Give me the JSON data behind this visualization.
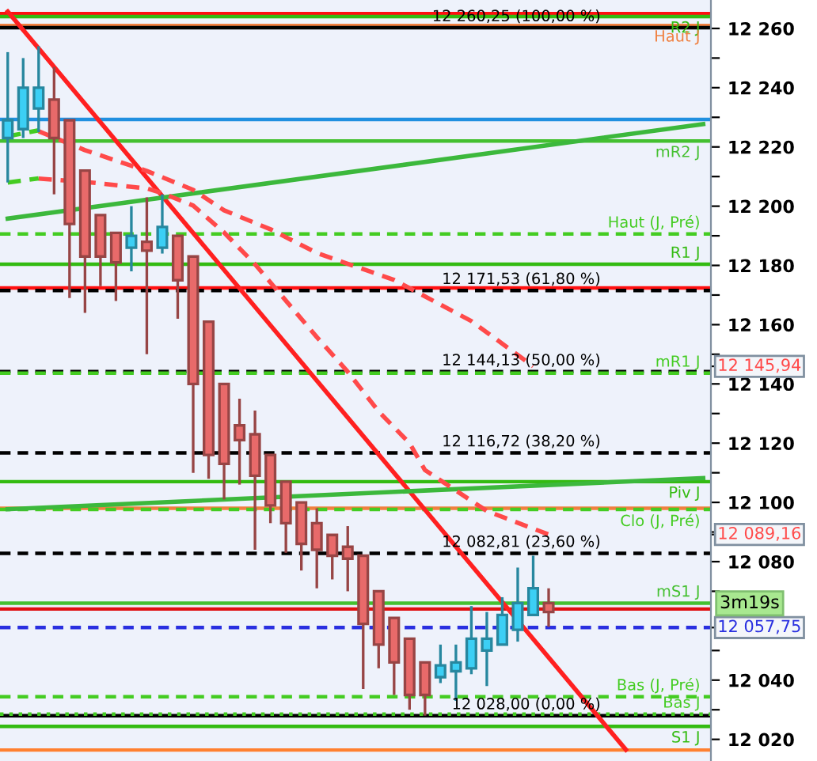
{
  "chart_data": {
    "type": "candlestick",
    "categories": [
      null,
      null,
      null,
      null,
      null,
      null,
      null,
      null,
      null,
      null,
      null,
      null,
      null,
      null,
      null,
      null,
      null,
      null,
      null,
      null,
      null,
      null,
      null,
      null,
      null,
      null,
      null,
      null,
      null,
      null,
      null,
      null,
      null,
      null,
      null,
      null,
      null,
      null,
      null,
      null,
      null,
      null,
      null,
      null,
      null,
      null
    ],
    "ohlc": [
      [
        12223,
        12252,
        12208,
        12229
      ],
      [
        12226,
        12250,
        12223,
        12240
      ],
      [
        12233,
        12254,
        12225,
        12240
      ],
      [
        12236,
        12247,
        12204,
        12223
      ],
      [
        12229,
        12229,
        12169,
        12194
      ],
      [
        12212,
        12212,
        12164,
        12183
      ],
      [
        12197,
        12197,
        12173,
        12183
      ],
      [
        12191,
        12191,
        12168,
        12181
      ],
      [
        12186,
        12200,
        12178,
        12190
      ],
      [
        12188,
        12203,
        12150,
        12185
      ],
      [
        12186,
        12204,
        12184,
        12193
      ],
      [
        12190,
        12190,
        12162,
        12175
      ],
      [
        12183,
        12183,
        12110,
        12140
      ],
      [
        12161,
        12161,
        12108,
        12116
      ],
      [
        12140,
        12140,
        12101,
        12113
      ],
      [
        12126,
        12135,
        12106,
        12121
      ],
      [
        12123,
        12131,
        12084,
        12109
      ],
      [
        12116,
        12116,
        12093,
        12099
      ],
      [
        12107,
        12107,
        12083,
        12093
      ],
      [
        12100,
        12100,
        12077,
        12086
      ],
      [
        12093,
        12098,
        12071,
        12084
      ],
      [
        12089,
        12089,
        12074,
        12082
      ],
      [
        12085,
        12092,
        12070,
        12081
      ],
      [
        12082,
        12082,
        12037,
        12059
      ],
      [
        12070,
        12070,
        12044,
        12052
      ],
      [
        12061,
        12061,
        12035,
        12046
      ],
      [
        12054,
        12054,
        12030,
        12035
      ],
      [
        12046,
        12046,
        12028,
        12035
      ],
      [
        12041,
        12052,
        12039,
        12045
      ],
      [
        12043,
        12052,
        12033,
        12046
      ],
      [
        12044,
        12065,
        12042,
        12054
      ],
      [
        12050,
        12063,
        12038,
        12054
      ],
      [
        12052,
        12068,
        12052,
        12062
      ],
      [
        12057,
        12078,
        12053,
        12066
      ],
      [
        12062,
        12082,
        12062,
        12071
      ],
      [
        12066,
        12071,
        12058,
        12063
      ],
      null,
      null,
      null,
      null,
      null,
      null,
      null,
      null,
      null,
      null
    ],
    "colors": [
      "#3ccff5",
      "#3ccff5",
      "#3ccff5",
      "#e86a6a",
      "#e86a6a",
      "#e86a6a",
      "#e86a6a",
      "#e86a6a",
      "#3ccff5",
      "#e86a6a",
      "#3ccff5",
      "#e86a6a",
      "#e86a6a",
      "#e86a6a",
      "#e86a6a",
      "#e86a6a",
      "#e86a6a",
      "#e86a6a",
      "#e86a6a",
      "#e86a6a",
      "#e86a6a",
      "#e86a6a",
      "#e86a6a",
      "#e86a6a",
      "#e86a6a",
      "#e86a6a",
      "#e86a6a",
      "#e86a6a",
      "#3ccff5",
      "#3ccff5",
      "#3ccff5",
      "#3ccff5",
      "#3ccff5",
      "#3ccff5",
      "#3ccff5",
      "#e86a6a",
      null,
      null,
      null,
      null,
      null,
      null,
      null,
      null,
      null,
      null
    ],
    "series": [
      {
        "type": "line",
        "color": "#ff2020",
        "line_style": "solid",
        "values": [
          12265.7,
          null,
          null,
          null,
          null,
          null,
          null,
          null,
          null,
          null,
          null,
          null,
          null,
          null,
          null,
          null,
          null,
          null,
          null,
          null,
          null,
          null,
          null,
          null,
          null,
          null,
          null,
          null,
          null,
          null,
          null,
          null,
          null,
          null,
          null,
          null,
          null,
          null,
          null,
          null,
          12016.5,
          null,
          null,
          null,
          null,
          null
        ]
      },
      {
        "type": "line",
        "color": "#3cb83c",
        "line_style": "solid",
        "values": [
          12195.8,
          null,
          null,
          null,
          null,
          null,
          null,
          null,
          null,
          null,
          null,
          null,
          null,
          null,
          null,
          null,
          null,
          null,
          null,
          null,
          null,
          null,
          null,
          null,
          null,
          null,
          null,
          null,
          null,
          null,
          null,
          null,
          null,
          null,
          null,
          null,
          null,
          null,
          null,
          null,
          null,
          null,
          null,
          null,
          null,
          12227.7
        ]
      },
      {
        "type": "line",
        "color": "#3cb83c",
        "line_style": "solid",
        "values": [
          12097.7,
          null,
          null,
          null,
          null,
          null,
          null,
          null,
          null,
          null,
          null,
          null,
          null,
          null,
          null,
          null,
          null,
          null,
          null,
          null,
          null,
          null,
          null,
          null,
          null,
          null,
          null,
          null,
          null,
          null,
          null,
          null,
          null,
          null,
          null,
          null,
          null,
          null,
          null,
          null,
          null,
          null,
          null,
          null,
          null,
          12108.2
        ]
      },
      {
        "type": "line",
        "color": "#ff4a4a",
        "line_style": "dashed",
        "values": [
          null,
          null,
          12225.3,
          null,
          null,
          12218.9,
          null,
          null,
          null,
          12211.9,
          null,
          null,
          12205.5,
          null,
          12198.6,
          null,
          null,
          12192.2,
          null,
          null,
          12184.2,
          null,
          null,
          null,
          null,
          12175.1,
          null,
          null,
          null,
          null,
          12161.2,
          null,
          null,
          null,
          12145.94,
          null,
          null,
          null,
          null,
          null,
          null,
          null,
          null,
          null,
          null,
          null
        ]
      },
      {
        "type": "line",
        "color": "#ff4a4a",
        "line_style": "dashed",
        "values": [
          null,
          null,
          12209.3,
          null,
          null,
          12208.2,
          null,
          null,
          null,
          12206.0,
          12204.4,
          null,
          12200.2,
          null,
          12191.1,
          null,
          12180.4,
          null,
          12168.1,
          null,
          12155.8,
          null,
          12144.1,
          null,
          12130.7,
          null,
          12120.0,
          12110.9,
          null,
          null,
          null,
          12097.1,
          null,
          null,
          null,
          12089.16,
          null,
          null,
          null,
          null,
          null,
          null,
          null,
          null,
          null,
          null
        ]
      },
      {
        "type": "line",
        "color": "#44cc22",
        "line_style": "dashed",
        "values": [
          12223.6,
          null,
          12225.6,
          null,
          null,
          null,
          null,
          null,
          null,
          null,
          null,
          null,
          null,
          null,
          null,
          null,
          null,
          null,
          null,
          null,
          null,
          null,
          null,
          null,
          null,
          null,
          null,
          null,
          null,
          null,
          null,
          null,
          null,
          null,
          null,
          null,
          null,
          null,
          null,
          null,
          null,
          null,
          null,
          null,
          null,
          null
        ]
      },
      {
        "type": "line",
        "color": "#44cc22",
        "line_style": "dashed",
        "values": [
          12208.0,
          null,
          12209.4,
          null,
          null,
          null,
          null,
          null,
          null,
          null,
          null,
          null,
          null,
          null,
          null,
          null,
          null,
          null,
          null,
          null,
          null,
          null,
          null,
          null,
          null,
          null,
          null,
          null,
          null,
          null,
          null,
          null,
          null,
          null,
          null,
          null,
          null,
          null,
          null,
          null,
          null,
          null,
          null,
          null,
          null,
          null
        ]
      }
    ],
    "ref_lines": [
      {
        "axis": "y",
        "value": 12265,
        "label": null,
        "color": "#ff1010",
        "line_style": "solid"
      },
      {
        "axis": "y",
        "value": 12264,
        "label": "R2 J",
        "color": "#33bb11",
        "line_style": "solid"
      },
      {
        "axis": "y",
        "value": 12261,
        "label": "Haut J",
        "color": "#f08040",
        "line_style": "solid"
      },
      {
        "axis": "y",
        "value": 12260.25,
        "label": "12 260,25 (100,00 %)",
        "color": "#000000",
        "line_style": "solid"
      },
      {
        "axis": "y",
        "value": 12229.3,
        "label": null,
        "color": "#2090e0",
        "line_style": "solid"
      },
      {
        "axis": "y",
        "value": 12222,
        "label": "mR2 J",
        "color": "#44c030",
        "line_style": "solid"
      },
      {
        "axis": "y",
        "value": 12190.6,
        "label": "Haut (J, Pré)",
        "color": "#44cc22",
        "line_style": "dashed"
      },
      {
        "axis": "y",
        "value": 12180.4,
        "label": "R1 J",
        "color": "#33bb11",
        "line_style": "solid"
      },
      {
        "axis": "y",
        "value": 12172.4,
        "label": null,
        "color": "#ff1010",
        "line_style": "solid"
      },
      {
        "axis": "y",
        "value": 12171.53,
        "label": "12 171,53 (61,80 %)",
        "color": "#000000",
        "line_style": "dashed"
      },
      {
        "axis": "y",
        "value": 12144.13,
        "label": "12 144,13 (50,00 %)",
        "color": "#000000",
        "line_style": "dashed"
      },
      {
        "axis": "y",
        "value": 12143.6,
        "label": "mR1 J",
        "color": "#44cc22",
        "line_style": "dashed"
      },
      {
        "axis": "y",
        "value": 12116.72,
        "label": "12 116,72 (38,20 %)",
        "color": "#000000",
        "line_style": "dashed"
      },
      {
        "axis": "y",
        "value": 12107,
        "label": "Piv J",
        "color": "#33bb11",
        "line_style": "solid"
      },
      {
        "axis": "y",
        "value": 12098,
        "label": null,
        "color": "#f08040",
        "line_style": "solid"
      },
      {
        "axis": "y",
        "value": 12097.6,
        "label": "Clo (J, Pré)",
        "color": "#44cc22",
        "line_style": "dashed"
      },
      {
        "axis": "y",
        "value": 12082.81,
        "label": "12 082,81 (23,60 %)",
        "color": "#000000",
        "line_style": "dashed"
      },
      {
        "axis": "y",
        "value": 12066,
        "label": "mS1 J",
        "color": "#44c030",
        "line_style": "solid"
      },
      {
        "axis": "y",
        "value": 12064,
        "label": null,
        "color": "#e01010",
        "line_style": "solid"
      },
      {
        "axis": "y",
        "value": 12057.75,
        "label": null,
        "color": "#2a30e0",
        "line_style": "dashed"
      },
      {
        "axis": "y",
        "value": 12034.4,
        "label": "Bas (J, Pré)",
        "color": "#44cc22",
        "line_style": "dashed"
      },
      {
        "axis": "y",
        "value": 12028,
        "label": "12 028,00 (0,00 %)",
        "color": "#000000",
        "line_style": "solid"
      },
      {
        "axis": "y",
        "value": 12028.5,
        "label": "Bas J",
        "color": "#44cc22",
        "line_style": "dotted"
      },
      {
        "axis": "y",
        "value": 12024.4,
        "label": "S1 J",
        "color": "#33bb11",
        "line_style": "solid"
      },
      {
        "axis": "y",
        "value": 12016.4,
        "label": null,
        "color": "#ff8030",
        "line_style": "solid"
      }
    ],
    "annotations": [
      "3m19s"
    ],
    "ylim": [
      12012.7,
      12269.6
    ],
    "yticks": [
      {
        "value": 12260,
        "label": "12 260"
      },
      {
        "value": 12250,
        "label": null
      },
      {
        "value": 12240,
        "label": "12 240"
      },
      {
        "value": 12230,
        "label": null
      },
      {
        "value": 12220,
        "label": "12 220"
      },
      {
        "value": 12210,
        "label": null
      },
      {
        "value": 12200,
        "label": "12 200"
      },
      {
        "value": 12190,
        "label": null
      },
      {
        "value": 12180,
        "label": "12 180"
      },
      {
        "value": 12170,
        "label": null
      },
      {
        "value": 12160,
        "label": "12 160"
      },
      {
        "value": 12150,
        "label": null
      },
      {
        "value": 12145.94,
        "label": "12 145,94"
      },
      {
        "value": 12140,
        "label": "12 140"
      },
      {
        "value": 12130,
        "label": null
      },
      {
        "value": 12120,
        "label": "12 120"
      },
      {
        "value": 12110,
        "label": null
      },
      {
        "value": 12100,
        "label": "12 100"
      },
      {
        "value": 12090,
        "label": null
      },
      {
        "value": 12089.16,
        "label": "12 089,16"
      },
      {
        "value": 12080,
        "label": "12 080"
      },
      {
        "value": 12070,
        "label": null
      },
      {
        "value": 12057.75,
        "label": "12 057,75"
      },
      {
        "value": 12050,
        "label": null
      },
      {
        "value": 12040,
        "label": "12 040"
      },
      {
        "value": 12030,
        "label": null
      },
      {
        "value": 12020,
        "label": "12 020"
      }
    ],
    "tick_labels": "y",
    "grid": false,
    "legend": false
  }
}
